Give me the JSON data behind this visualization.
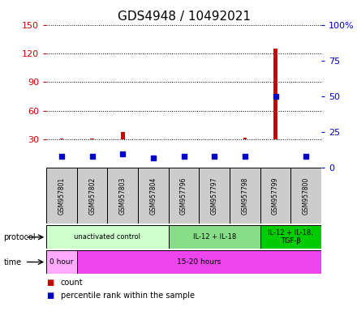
{
  "title": "GDS4948 / 10492021",
  "samples": [
    "GSM957801",
    "GSM957802",
    "GSM957803",
    "GSM957804",
    "GSM957796",
    "GSM957797",
    "GSM957798",
    "GSM957799",
    "GSM957800"
  ],
  "count_values": [
    31,
    31,
    38,
    30,
    30,
    30,
    32,
    125,
    30
  ],
  "percentile_values": [
    8,
    8,
    10,
    7,
    8,
    8,
    8,
    50,
    8
  ],
  "ylim_left": [
    0,
    150
  ],
  "ylim_right": [
    0,
    100
  ],
  "yticks_left": [
    30,
    60,
    90,
    120,
    150
  ],
  "yticks_right": [
    0,
    25,
    50,
    75,
    100
  ],
  "protocol_groups": [
    {
      "label": "unactivated control",
      "cols": 4,
      "color": "#ccffcc"
    },
    {
      "label": "IL-12 + IL-18",
      "cols": 3,
      "color": "#88dd88"
    },
    {
      "label": "IL-12 + IL-18,\nTGF-β",
      "cols": 2,
      "color": "#00cc00"
    }
  ],
  "time_groups": [
    {
      "label": "0 hour",
      "cols": 1,
      "color": "#ffaaff"
    },
    {
      "label": "15-20 hours",
      "cols": 8,
      "color": "#ee44ee"
    }
  ],
  "count_color": "#cc0000",
  "percentile_color": "#0000cc",
  "grid_color": "#000000",
  "sample_box_color": "#cccccc",
  "left_axis_color": "#cc0000",
  "right_axis_color": "#0000cc",
  "title_fontsize": 11,
  "tick_fontsize": 8,
  "baseline": 30
}
